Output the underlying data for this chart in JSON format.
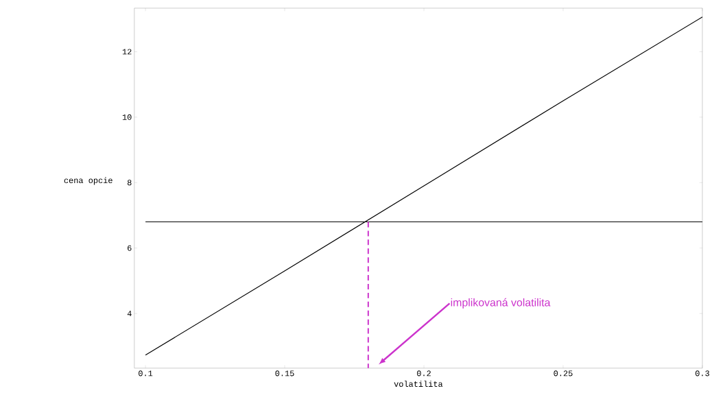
{
  "chart_data": {
    "type": "line",
    "xlabel": "volatilita",
    "ylabel": "cena opcie",
    "xlim": [
      0.096,
      0.3
    ],
    "ylim": [
      2.33,
      13.33
    ],
    "xticks": [
      0.1,
      0.15,
      0.2,
      0.25,
      0.3
    ],
    "yticks": [
      4,
      6,
      8,
      10,
      12
    ],
    "series": [
      {
        "x": [
          0.1,
          0.15,
          0.2,
          0.25,
          0.3
        ],
        "values": [
          2.73,
          5.3,
          7.9,
          10.5,
          13.06
        ],
        "color": "#000000",
        "line_style": "solid"
      },
      {
        "x": [
          0.1,
          0.3
        ],
        "values": [
          6.8,
          6.8
        ],
        "color": "#000000",
        "line_style": "solid"
      },
      {
        "x": [
          0.18,
          0.18
        ],
        "values": [
          6.8,
          2.33
        ],
        "color": "#cc33cc",
        "line_style": "dashed"
      }
    ],
    "annotations": [
      "implikovaná volatilita"
    ],
    "grid": false
  }
}
